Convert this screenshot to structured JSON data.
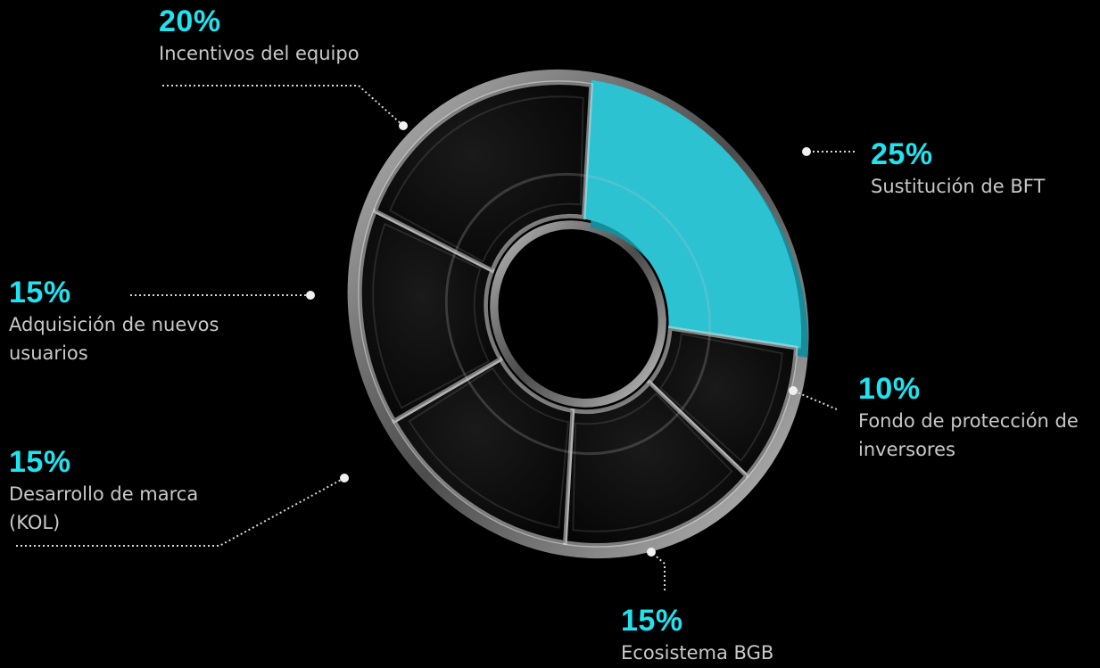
{
  "colors": {
    "background": "#000000",
    "accent": "#1fe3f0",
    "highlight_slice": "#2cc2d1",
    "text": "#c9c9c9"
  },
  "chart_data": {
    "type": "pie",
    "style": "3d-glass-donut",
    "title": "",
    "slices": [
      {
        "label": "Sustitución de BFT",
        "value": 25,
        "value_label": "25%",
        "highlighted": true
      },
      {
        "label": "Fondo de protección de inversores",
        "value": 10,
        "value_label": "10%"
      },
      {
        "label": "Ecosistema BGB",
        "value": 15,
        "value_label": "15%"
      },
      {
        "label": "Desarrollo de marca (KOL)",
        "value": 15,
        "value_label": "15%"
      },
      {
        "label": "Adquisición de nuevos usuarios",
        "value": 15,
        "value_label": "15%"
      },
      {
        "label": "Incentivos del equipo",
        "value": 20,
        "value_label": "20%"
      }
    ]
  }
}
